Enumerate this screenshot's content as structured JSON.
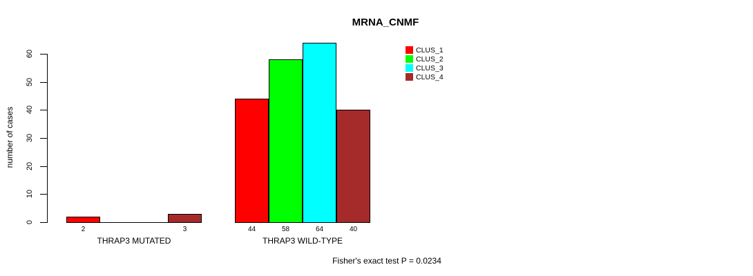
{
  "chart_data": {
    "type": "bar",
    "title": "MRNA_CNMF",
    "xlabel": "",
    "ylabel": "number of cases",
    "ylim": [
      0,
      60
    ],
    "yticks": [
      0,
      10,
      20,
      30,
      40,
      50,
      60
    ],
    "grid": false,
    "legend_position": "top-right-inside",
    "categories": [
      "THRAP3 MUTATED",
      "THRAP3 WILD-TYPE"
    ],
    "series": [
      {
        "name": "CLUS_1",
        "color": "#ff0000",
        "values": [
          2,
          44
        ]
      },
      {
        "name": "CLUS_2",
        "color": "#00ff00",
        "values": [
          0,
          58
        ]
      },
      {
        "name": "CLUS_3",
        "color": "#00ffff",
        "values": [
          0,
          64
        ]
      },
      {
        "name": "CLUS_4",
        "color": "#a52a2a",
        "values": [
          3,
          40
        ]
      }
    ],
    "groups": [
      {
        "label": "THRAP3 MUTATED",
        "values": [
          2,
          0,
          0,
          3
        ],
        "value_labels": [
          "2",
          "",
          "",
          "3"
        ]
      },
      {
        "label": "THRAP3 WILD-TYPE",
        "values": [
          44,
          58,
          64,
          40
        ],
        "value_labels": [
          "44",
          "58",
          "64",
          "40"
        ]
      }
    ]
  },
  "footer": {
    "caption": "Fisher's exact test P = 0.0234"
  },
  "colors": {
    "axis": "#000000",
    "background": "#ffffff",
    "text": "#000000"
  }
}
